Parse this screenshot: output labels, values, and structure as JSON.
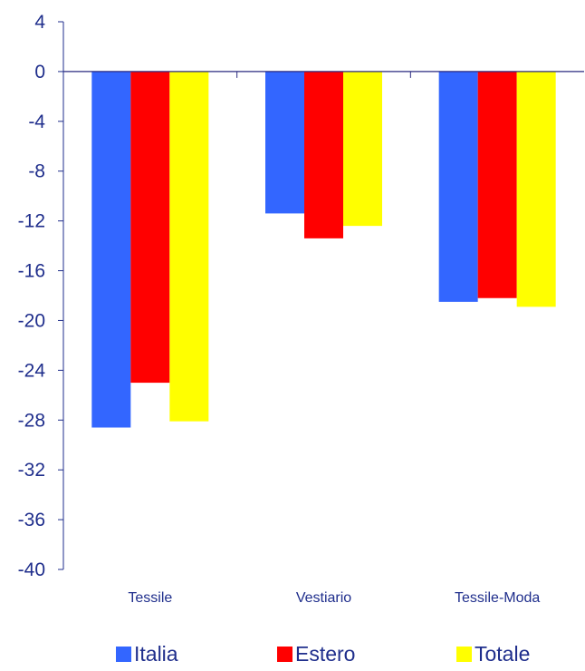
{
  "chart_data": {
    "type": "bar",
    "title": "",
    "xlabel": "",
    "ylabel": "",
    "categories": [
      "Tessile",
      "Vestiario",
      "Tessile-Moda"
    ],
    "series": [
      {
        "name": "Italia",
        "color": "#3366ff",
        "values": [
          -28.6,
          -11.4,
          -18.5
        ]
      },
      {
        "name": "Estero",
        "color": "#ff0000",
        "values": [
          -25.0,
          -13.4,
          -18.2
        ]
      },
      {
        "name": "Totale",
        "color": "#ffff00",
        "values": [
          -28.1,
          -12.4,
          -18.9
        ]
      }
    ],
    "ylim": [
      -40,
      4
    ],
    "yticks": [
      4,
      0,
      -4,
      -8,
      -12,
      -16,
      -20,
      -24,
      -28,
      -32,
      -36,
      -40
    ],
    "grid": false,
    "legend_position": "bottom",
    "axis_color": "#1f2e8c",
    "zero_line_color": "#2a2a80"
  }
}
